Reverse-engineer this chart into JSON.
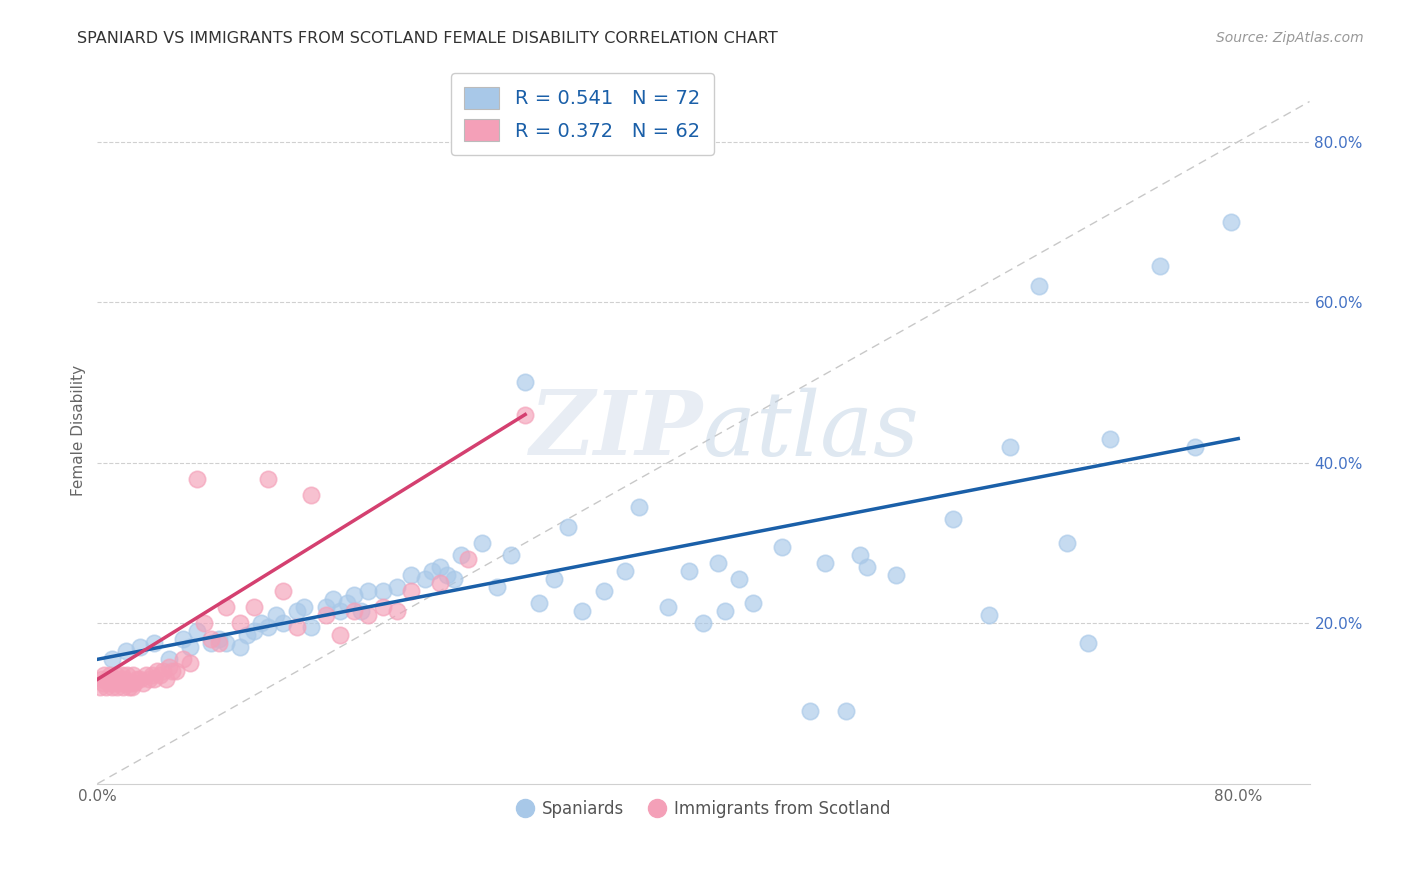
{
  "title": "SPANIARD VS IMMIGRANTS FROM SCOTLAND FEMALE DISABILITY CORRELATION CHART",
  "source": "Source: ZipAtlas.com",
  "ylabel": "Female Disability",
  "xlim": [
    0.0,
    0.85
  ],
  "ylim": [
    0.0,
    0.88
  ],
  "xtick_labels": [
    "0.0%",
    "",
    "",
    "",
    "80.0%"
  ],
  "xtick_vals": [
    0.0,
    0.2,
    0.4,
    0.6,
    0.8
  ],
  "ytick_labels": [
    "20.0%",
    "40.0%",
    "60.0%",
    "80.0%"
  ],
  "ytick_vals": [
    0.2,
    0.4,
    0.6,
    0.8
  ],
  "legend_label1": "R = 0.541   N = 72",
  "legend_label2": "R = 0.372   N = 62",
  "legend_labels_bottom": [
    "Spaniards",
    "Immigrants from Scotland"
  ],
  "blue_color": "#a8c8e8",
  "pink_color": "#f4a0b8",
  "blue_line_color": "#1a5fa8",
  "pink_line_color": "#d44070",
  "diagonal_color": "#c8c8c8",
  "watermark_zip": "ZIP",
  "watermark_atlas": "atlas",
  "blue_scatter_x": [
    0.01,
    0.02,
    0.03,
    0.04,
    0.05,
    0.06,
    0.065,
    0.07,
    0.08,
    0.085,
    0.09,
    0.1,
    0.105,
    0.11,
    0.115,
    0.12,
    0.125,
    0.13,
    0.14,
    0.145,
    0.15,
    0.16,
    0.165,
    0.17,
    0.175,
    0.18,
    0.185,
    0.19,
    0.2,
    0.21,
    0.22,
    0.23,
    0.235,
    0.24,
    0.245,
    0.25,
    0.255,
    0.27,
    0.28,
    0.29,
    0.3,
    0.31,
    0.32,
    0.33,
    0.34,
    0.355,
    0.37,
    0.38,
    0.4,
    0.415,
    0.425,
    0.435,
    0.44,
    0.45,
    0.46,
    0.48,
    0.5,
    0.51,
    0.525,
    0.535,
    0.54,
    0.56,
    0.6,
    0.625,
    0.64,
    0.66,
    0.68,
    0.695,
    0.71,
    0.745,
    0.77,
    0.795
  ],
  "blue_scatter_y": [
    0.155,
    0.165,
    0.17,
    0.175,
    0.155,
    0.18,
    0.17,
    0.19,
    0.175,
    0.18,
    0.175,
    0.17,
    0.185,
    0.19,
    0.2,
    0.195,
    0.21,
    0.2,
    0.215,
    0.22,
    0.195,
    0.22,
    0.23,
    0.215,
    0.225,
    0.235,
    0.215,
    0.24,
    0.24,
    0.245,
    0.26,
    0.255,
    0.265,
    0.27,
    0.26,
    0.255,
    0.285,
    0.3,
    0.245,
    0.285,
    0.5,
    0.225,
    0.255,
    0.32,
    0.215,
    0.24,
    0.265,
    0.345,
    0.22,
    0.265,
    0.2,
    0.275,
    0.215,
    0.255,
    0.225,
    0.295,
    0.09,
    0.275,
    0.09,
    0.285,
    0.27,
    0.26,
    0.33,
    0.21,
    0.42,
    0.62,
    0.3,
    0.175,
    0.43,
    0.645,
    0.42,
    0.7
  ],
  "pink_scatter_x": [
    0.002,
    0.003,
    0.004,
    0.005,
    0.006,
    0.007,
    0.008,
    0.009,
    0.01,
    0.011,
    0.012,
    0.013,
    0.014,
    0.015,
    0.016,
    0.017,
    0.018,
    0.019,
    0.02,
    0.021,
    0.022,
    0.023,
    0.024,
    0.025,
    0.026,
    0.028,
    0.03,
    0.032,
    0.034,
    0.036,
    0.038,
    0.04,
    0.042,
    0.044,
    0.046,
    0.048,
    0.05,
    0.052,
    0.055,
    0.06,
    0.065,
    0.07,
    0.075,
    0.08,
    0.085,
    0.09,
    0.1,
    0.11,
    0.12,
    0.13,
    0.14,
    0.15,
    0.16,
    0.17,
    0.18,
    0.19,
    0.2,
    0.21,
    0.22,
    0.24,
    0.26,
    0.3
  ],
  "pink_scatter_y": [
    0.12,
    0.13,
    0.125,
    0.135,
    0.12,
    0.13,
    0.125,
    0.135,
    0.12,
    0.13,
    0.125,
    0.135,
    0.12,
    0.13,
    0.125,
    0.135,
    0.12,
    0.13,
    0.125,
    0.135,
    0.12,
    0.125,
    0.12,
    0.135,
    0.125,
    0.13,
    0.13,
    0.125,
    0.135,
    0.13,
    0.135,
    0.13,
    0.14,
    0.135,
    0.14,
    0.13,
    0.145,
    0.14,
    0.14,
    0.155,
    0.15,
    0.38,
    0.2,
    0.18,
    0.175,
    0.22,
    0.2,
    0.22,
    0.38,
    0.24,
    0.195,
    0.36,
    0.21,
    0.185,
    0.215,
    0.21,
    0.22,
    0.215,
    0.24,
    0.25,
    0.28,
    0.46
  ]
}
